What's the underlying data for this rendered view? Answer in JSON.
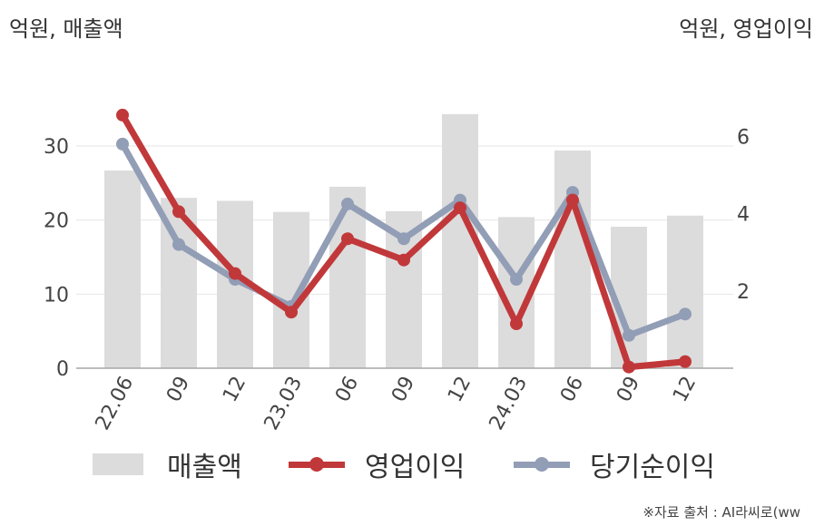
{
  "units": {
    "left": "억원, 매출액",
    "right": "억원, 영업이익"
  },
  "source": "※자료 출처 : AI라씨로(ww",
  "chart_data": {
    "type": "bar+line",
    "categories": [
      "22.06",
      "09",
      "12",
      "23.03",
      "06",
      "09",
      "12",
      "24.03",
      "06",
      "09",
      "12"
    ],
    "left_axis": {
      "ylim": [
        0,
        36
      ],
      "ticks": [
        0,
        10,
        20,
        30
      ]
    },
    "right_axis": {
      "ylim": [
        0,
        6.9
      ],
      "ticks": [
        2,
        4,
        6
      ]
    },
    "series": [
      {
        "name": "매출액",
        "type": "bar",
        "axis": "left",
        "color": "#dcdcdc",
        "values": [
          26.7,
          23.0,
          22.6,
          21.1,
          24.5,
          21.2,
          34.3,
          20.4,
          29.4,
          19.1,
          20.6
        ]
      },
      {
        "name": "영업이익",
        "type": "line",
        "axis": "right",
        "color": "#c1383a",
        "values": [
          6.55,
          4.05,
          2.45,
          1.45,
          3.35,
          2.8,
          4.15,
          1.15,
          4.35,
          0.03,
          0.17
        ]
      },
      {
        "name": "당기순이익",
        "type": "line",
        "axis": "right",
        "color": "#929db6",
        "values": [
          5.8,
          3.2,
          2.3,
          1.6,
          4.25,
          3.35,
          4.35,
          2.3,
          4.55,
          0.85,
          1.4
        ]
      }
    ],
    "grid": true,
    "legend_position": "bottom"
  }
}
